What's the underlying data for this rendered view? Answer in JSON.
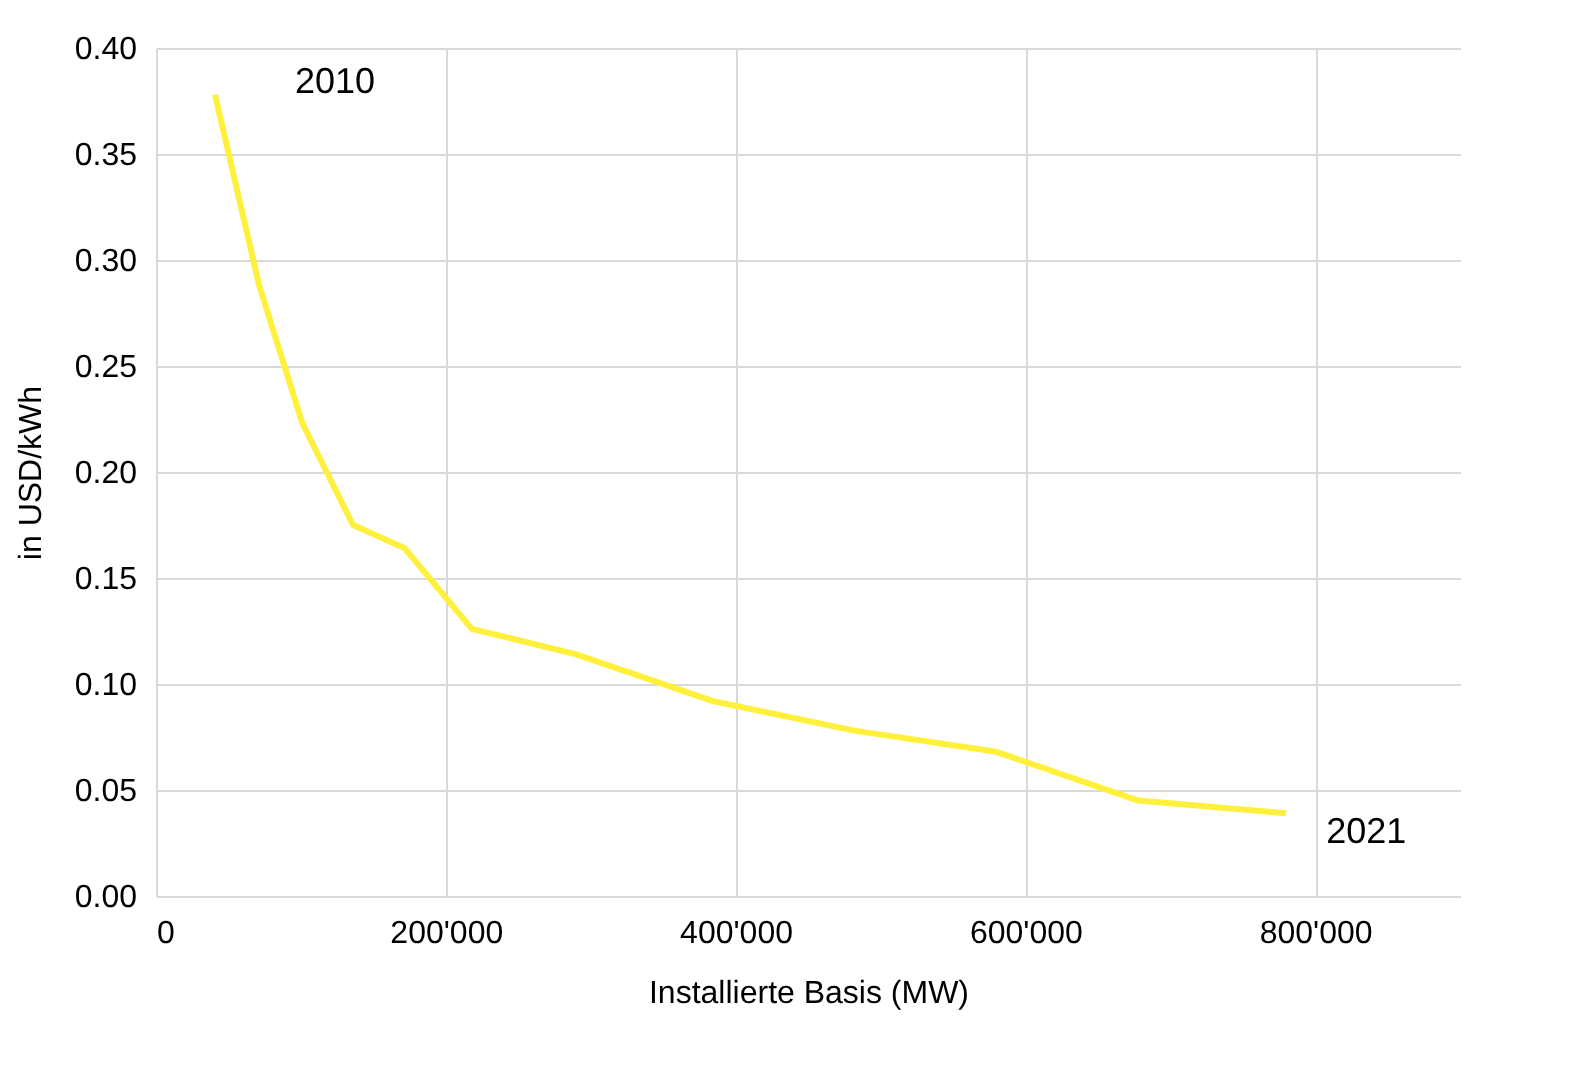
{
  "chart_data": {
    "type": "line",
    "xlabel": "Installierte Basis (MW)",
    "ylabel": "in USD/kWh",
    "x": [
      40700,
      71200,
      101000,
      136000,
      171700,
      218000,
      290000,
      384000,
      482000,
      580000,
      678000,
      780000
    ],
    "series": [
      {
        "color": "#fff03c",
        "values": [
          0.378,
          0.288,
          0.223,
          0.175,
          0.164,
          0.126,
          0.114,
          0.092,
          0.078,
          0.068,
          0.045,
          0.039
        ]
      }
    ],
    "xlim": [
      0,
      900000
    ],
    "xticks": [
      0,
      {
        "value": 200000,
        "label": "200'000"
      },
      {
        "value": 400000,
        "label": "400'000"
      },
      {
        "value": 600000,
        "label": "600'000"
      },
      {
        "value": 800000,
        "label": "800'000"
      }
    ],
    "ylim": [
      0,
      0.4
    ],
    "yticks": [
      {
        "value": 0,
        "label": "0.00"
      },
      0.05,
      {
        "value": 0.1,
        "label": "0.10"
      },
      0.15,
      {
        "value": 0.2,
        "label": "0.20"
      },
      0.25,
      {
        "value": 0.3,
        "label": "0.30"
      },
      0.35,
      {
        "value": 0.4,
        "label": "0.40"
      }
    ],
    "annotations": [
      {
        "text": "2010",
        "x": 40700,
        "y": 0.378
      },
      {
        "text": "2021",
        "x": 780000,
        "y": 0.039
      }
    ],
    "grid": true,
    "legend": false,
    "marker": "none",
    "line_style": "solid"
  }
}
